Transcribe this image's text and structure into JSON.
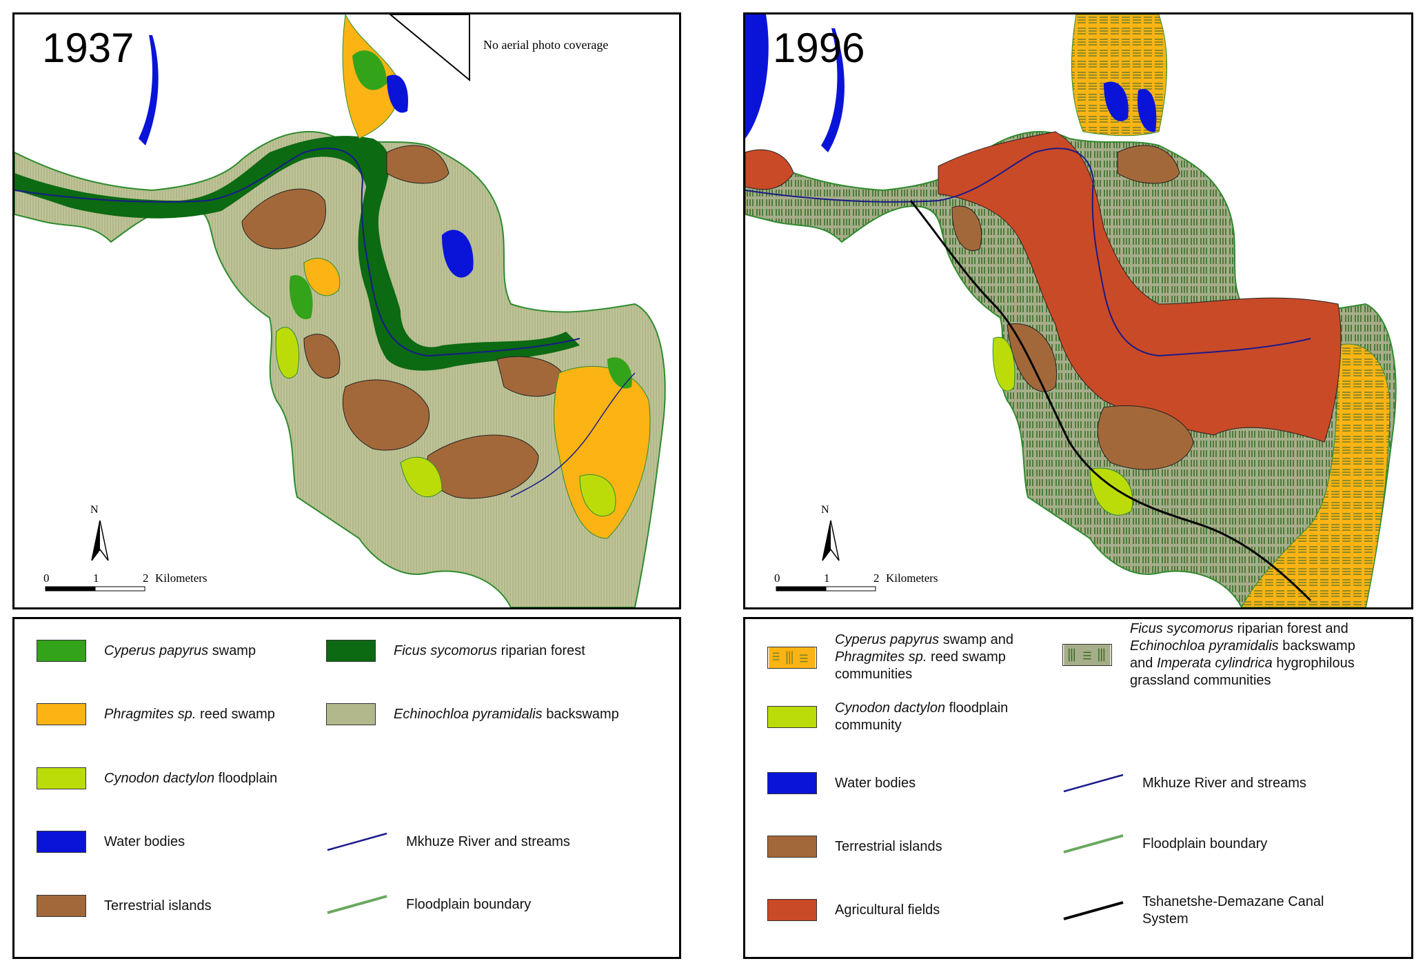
{
  "maps": [
    {
      "year": "1937",
      "note": "No aerial photo coverage",
      "north_label": "N",
      "scale": {
        "ticks": [
          "0",
          "1",
          "2"
        ],
        "unit": "Kilometers"
      }
    },
    {
      "year": "1996",
      "north_label": "N",
      "scale": {
        "ticks": [
          "0",
          "1",
          "2"
        ],
        "unit": "Kilometers"
      }
    }
  ],
  "legend_1937": [
    {
      "italic": "Cyperus papyrus",
      "rest": " swamp",
      "color": "#33a31a"
    },
    {
      "italic": "Ficus sycomorus",
      "rest": " riparian forest",
      "color": "#0b6a12"
    },
    {
      "italic": "Phragmites sp.",
      "rest": " reed swamp",
      "color": "#fbb414"
    },
    {
      "italic": "Echinochloa pyramidalis",
      "rest": " backswamp",
      "color": "#b2b88c"
    },
    {
      "italic": "Cynodon dactylon",
      "rest": " floodplain",
      "color": "#bcdc0a"
    },
    {
      "italic": "",
      "rest": "Water bodies",
      "color": "#0a14d8"
    },
    {
      "italic": "",
      "rest": "Mkhuze River and streams",
      "color": "#1a1a8a"
    },
    {
      "italic": "",
      "rest": "Terrestrial islands",
      "color": "#a3683a"
    },
    {
      "italic": "",
      "rest": "Floodplain boundary",
      "color": "#6aa860"
    }
  ],
  "legend_1996": {
    "papyrus_phragmites": {
      "i1": "Cyperus papyrus",
      "t1": " swamp and",
      "i2": "Phragmites sp.",
      "t2": " reed swamp",
      "t3": "communities",
      "color": "#fbb414"
    },
    "ficus_mix": {
      "i1": "Ficus sycomorus",
      "t1": " riparian forest and",
      "i2": "Echinochloa pyramidalis",
      "t2": " backswamp",
      "t3a": "and ",
      "i3": "Imperata cylindrica",
      "t3b": " hygrophilous",
      "t4": "grassland communities",
      "color": "#a6ad8a"
    },
    "cynodon": {
      "i1": "Cynodon dactylon",
      "t1": " floodplain",
      "t2": "community",
      "color": "#bcdc0a"
    },
    "water": {
      "label": "Water bodies",
      "color": "#0a14d8"
    },
    "river": {
      "label": "Mkhuze River and streams",
      "color": "#1a1a8a"
    },
    "terrestrial": {
      "label": "Terrestrial islands",
      "color": "#a3683a"
    },
    "boundary": {
      "label": "Floodplain boundary",
      "color": "#6aa860"
    },
    "agricultural": {
      "label": "Agricultural fields",
      "color": "#c94a26"
    },
    "canal": {
      "label1": "Tshanetshe-Demazane Canal",
      "label2": "System",
      "color": "#000000"
    }
  }
}
